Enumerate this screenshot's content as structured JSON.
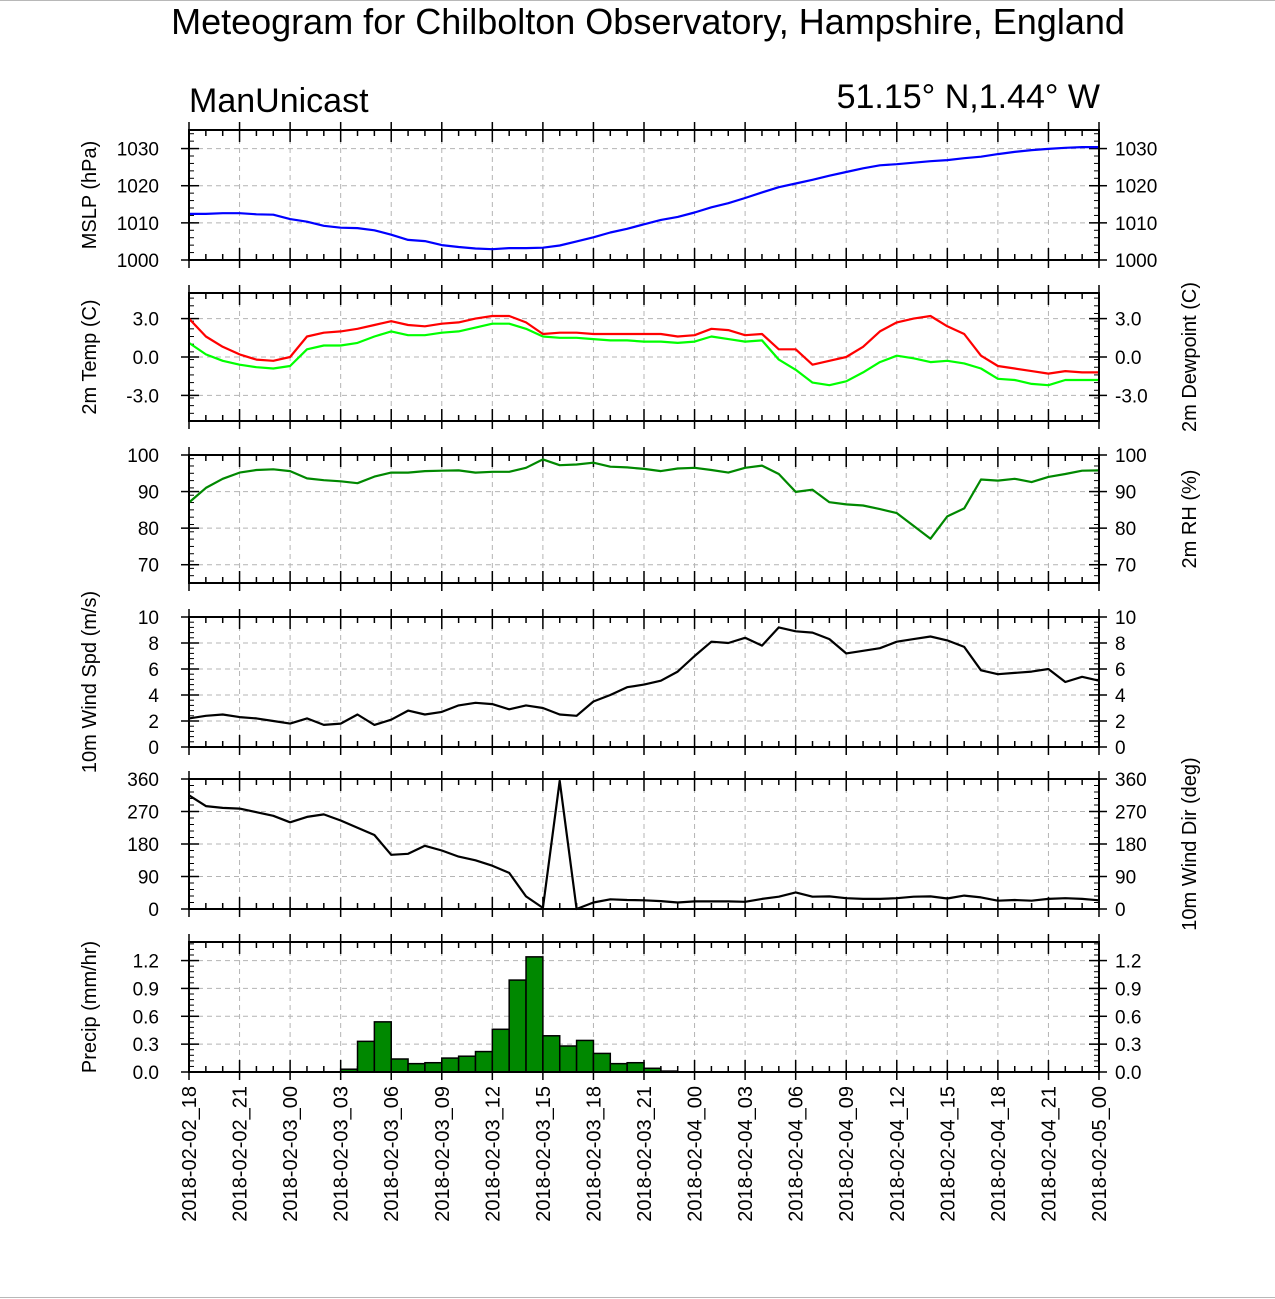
{
  "title": "Meteogram for Chilbolton Observatory, Hampshire, England",
  "model_label": "ManUnicast",
  "location_label": "51.15° N,1.44° W",
  "x_tick_labels": [
    "2018-02-02_18",
    "2018-02-02_21",
    "2018-02-03_00",
    "2018-02-03_03",
    "2018-02-03_06",
    "2018-02-03_09",
    "2018-02-03_12",
    "2018-02-03_15",
    "2018-02-03_18",
    "2018-02-03_21",
    "2018-02-04_00",
    "2018-02-04_03",
    "2018-02-04_06",
    "2018-02-04_09",
    "2018-02-04_12",
    "2018-02-04_15",
    "2018-02-04_18",
    "2018-02-04_21",
    "2018-02-05_00"
  ],
  "colors": {
    "mslp": "#0000ff",
    "temp": "#ff0000",
    "dewpoint": "#00ff00",
    "rh": "#008800",
    "wind": "#000000",
    "precip_fill": "#008800",
    "grid": "#b4b4b4"
  },
  "chart_data": [
    {
      "type": "line",
      "ylabel": "MSLP (hPa)",
      "ylabel_right": "",
      "ylim": [
        1000,
        1035
      ],
      "ticks": [
        1000,
        1010,
        1020,
        1030
      ],
      "tick_labels": [
        "1000",
        "1010",
        "1020",
        "1030"
      ],
      "grid": true,
      "series": [
        {
          "color_key": "mslp",
          "x": [
            0,
            1,
            2,
            3,
            4,
            5,
            6,
            7,
            8,
            9,
            10,
            11,
            12,
            13,
            14,
            15,
            16,
            17,
            18,
            19,
            20,
            21,
            22,
            23,
            24,
            25,
            26,
            27,
            28,
            29,
            30,
            31,
            32,
            33,
            34,
            35,
            36,
            37,
            38,
            39,
            40,
            41,
            42,
            43,
            44,
            45,
            46,
            47,
            48,
            49,
            50,
            51,
            52,
            53,
            54
          ],
          "values": [
            1012.4,
            1012.4,
            1012.6,
            1012.6,
            1012.3,
            1012.2,
            1011.0,
            1010.3,
            1009.2,
            1008.7,
            1008.6,
            1008.0,
            1006.8,
            1005.4,
            1005.1,
            1004.0,
            1003.5,
            1003.1,
            1002.9,
            1003.2,
            1003.2,
            1003.3,
            1003.9,
            1005.0,
            1006.1,
            1007.4,
            1008.4,
            1009.6,
            1010.8,
            1011.6,
            1012.8,
            1014.2,
            1015.3,
            1016.7,
            1018.2,
            1019.6,
            1020.6,
            1021.6,
            1022.7,
            1023.7,
            1024.7,
            1025.5,
            1025.8,
            1026.2,
            1026.6,
            1026.9,
            1027.4,
            1027.8,
            1028.5,
            1029.1,
            1029.6,
            1029.9,
            1030.2,
            1030.4,
            1030.4
          ]
        }
      ]
    },
    {
      "type": "line",
      "ylabel": "2m Temp (C)",
      "ylabel_right": "2m Dewpoint (C)",
      "ylim": [
        -5,
        5
      ],
      "ticks": [
        -3,
        0,
        3
      ],
      "tick_labels": [
        "-3.0",
        "0.0",
        "3.0"
      ],
      "grid": true,
      "series": [
        {
          "color_key": "temp",
          "x": [
            0,
            1,
            2,
            3,
            4,
            5,
            6,
            7,
            8,
            9,
            10,
            11,
            12,
            13,
            14,
            15,
            16,
            17,
            18,
            19,
            20,
            21,
            22,
            23,
            24,
            25,
            26,
            27,
            28,
            29,
            30,
            31,
            32,
            33,
            34,
            35,
            36,
            37,
            38,
            39,
            40,
            41,
            42,
            43,
            44,
            45,
            46,
            47,
            48,
            49,
            50,
            51,
            52,
            53,
            54
          ],
          "values": [
            3.0,
            1.6,
            0.8,
            0.2,
            -0.2,
            -0.3,
            0.0,
            1.6,
            1.9,
            2.0,
            2.2,
            2.5,
            2.8,
            2.5,
            2.4,
            2.6,
            2.7,
            3.0,
            3.2,
            3.2,
            2.7,
            1.8,
            1.9,
            1.9,
            1.8,
            1.8,
            1.8,
            1.8,
            1.8,
            1.6,
            1.7,
            2.2,
            2.1,
            1.7,
            1.8,
            0.6,
            0.6,
            -0.6,
            -0.3,
            0.0,
            0.8,
            2.0,
            2.7,
            3.0,
            3.2,
            2.4,
            1.8,
            0.1,
            -0.7,
            -0.9,
            -1.1,
            -1.3,
            -1.1,
            -1.2,
            -1.2
          ]
        },
        {
          "color_key": "dewpoint",
          "x": [
            0,
            1,
            2,
            3,
            4,
            5,
            6,
            7,
            8,
            9,
            10,
            11,
            12,
            13,
            14,
            15,
            16,
            17,
            18,
            19,
            20,
            21,
            22,
            23,
            24,
            25,
            26,
            27,
            28,
            29,
            30,
            31,
            32,
            33,
            34,
            35,
            36,
            37,
            38,
            39,
            40,
            41,
            42,
            43,
            44,
            45,
            46,
            47,
            48,
            49,
            50,
            51,
            52,
            53,
            54
          ],
          "values": [
            1.1,
            0.2,
            -0.3,
            -0.6,
            -0.8,
            -0.9,
            -0.7,
            0.6,
            0.9,
            0.9,
            1.1,
            1.6,
            2.0,
            1.7,
            1.7,
            1.9,
            2.0,
            2.3,
            2.6,
            2.6,
            2.2,
            1.6,
            1.5,
            1.5,
            1.4,
            1.3,
            1.3,
            1.2,
            1.2,
            1.1,
            1.2,
            1.6,
            1.4,
            1.2,
            1.3,
            -0.2,
            -1.0,
            -2.0,
            -2.2,
            -1.9,
            -1.2,
            -0.4,
            0.1,
            -0.1,
            -0.4,
            -0.3,
            -0.5,
            -0.9,
            -1.7,
            -1.8,
            -2.1,
            -2.2,
            -1.8,
            -1.8,
            -1.8
          ]
        }
      ]
    },
    {
      "type": "line",
      "ylabel": "",
      "ylabel_right": "2m RH (%)",
      "ylim": [
        65,
        100
      ],
      "ticks": [
        70,
        80,
        90,
        100
      ],
      "tick_labels": [
        "70",
        "80",
        "90",
        "100"
      ],
      "grid": true,
      "series": [
        {
          "color_key": "rh",
          "x": [
            0,
            1,
            2,
            3,
            4,
            5,
            6,
            7,
            8,
            9,
            10,
            11,
            12,
            13,
            14,
            15,
            16,
            17,
            18,
            19,
            20,
            21,
            22,
            23,
            24,
            25,
            26,
            27,
            28,
            29,
            30,
            31,
            32,
            33,
            34,
            35,
            36,
            37,
            38,
            39,
            40,
            41,
            42,
            43,
            44,
            45,
            46,
            47,
            48,
            49,
            50,
            51,
            52,
            53,
            54
          ],
          "values": [
            87.0,
            91.0,
            93.5,
            95.2,
            95.9,
            96.1,
            95.6,
            93.6,
            93.1,
            92.8,
            92.3,
            94.1,
            95.2,
            95.2,
            95.6,
            95.7,
            95.8,
            95.2,
            95.4,
            95.4,
            96.5,
            98.8,
            97.2,
            97.4,
            97.9,
            96.8,
            96.6,
            96.2,
            95.6,
            96.3,
            96.5,
            95.9,
            95.2,
            96.5,
            97.1,
            94.8,
            89.9,
            90.5,
            87.1,
            86.5,
            86.2,
            85.2,
            84.1,
            80.6,
            77.1,
            83.2,
            85.4,
            93.3,
            93.0,
            93.5,
            92.6,
            94.0,
            94.8,
            95.7,
            95.8
          ]
        }
      ]
    },
    {
      "type": "line",
      "ylabel": "10m Wind Spd (m/s)",
      "ylabel_right": "",
      "ylim": [
        0,
        10
      ],
      "ticks": [
        0,
        2,
        4,
        6,
        8,
        10
      ],
      "tick_labels": [
        "0",
        "2",
        "4",
        "6",
        "8",
        "10"
      ],
      "grid": true,
      "series": [
        {
          "color_key": "wind",
          "x": [
            0,
            1,
            2,
            3,
            4,
            5,
            6,
            7,
            8,
            9,
            10,
            11,
            12,
            13,
            14,
            15,
            16,
            17,
            18,
            19,
            20,
            21,
            22,
            23,
            24,
            25,
            26,
            27,
            28,
            29,
            30,
            31,
            32,
            33,
            34,
            35,
            36,
            37,
            38,
            39,
            40,
            41,
            42,
            43,
            44,
            45,
            46,
            47,
            48,
            49,
            50,
            51,
            52,
            53,
            54
          ],
          "values": [
            2.2,
            2.4,
            2.5,
            2.3,
            2.2,
            2.0,
            1.8,
            2.2,
            1.7,
            1.8,
            2.5,
            1.7,
            2.1,
            2.8,
            2.5,
            2.7,
            3.2,
            3.4,
            3.3,
            2.9,
            3.2,
            3.0,
            2.5,
            2.4,
            3.5,
            4.0,
            4.6,
            4.8,
            5.1,
            5.8,
            7.0,
            8.1,
            8.0,
            8.4,
            7.8,
            9.2,
            8.9,
            8.8,
            8.3,
            7.2,
            7.4,
            7.6,
            8.1,
            8.3,
            8.5,
            8.2,
            7.7,
            5.9,
            5.6,
            5.7,
            5.8,
            6.0,
            5.0,
            5.4,
            5.1
          ]
        }
      ]
    },
    {
      "type": "line",
      "ylabel": "",
      "ylabel_right": "10m Wind Dir (deg)",
      "ylim": [
        0,
        360
      ],
      "ticks": [
        0,
        90,
        180,
        270,
        360
      ],
      "tick_labels": [
        "0",
        "90",
        "180",
        "270",
        "360"
      ],
      "grid": true,
      "series": [
        {
          "color_key": "wind",
          "x": [
            0,
            1,
            2,
            3,
            4,
            5,
            6,
            7,
            8,
            9,
            10,
            11,
            12,
            13,
            14,
            15,
            16,
            17,
            18,
            19,
            20,
            21,
            22,
            23,
            24,
            25,
            26,
            27,
            28,
            29,
            30,
            31,
            32,
            33,
            34,
            35,
            36,
            37,
            38,
            39,
            40,
            41,
            42,
            43,
            44,
            45,
            46,
            47,
            48,
            49,
            50,
            51,
            52,
            53,
            54
          ],
          "values": [
            315,
            285,
            280,
            278,
            268,
            258,
            240,
            255,
            262,
            245,
            225,
            205,
            150,
            153,
            175,
            162,
            145,
            135,
            120,
            100,
            35,
            3,
            355,
            0,
            18,
            27,
            25,
            24,
            22,
            18,
            21,
            21,
            21,
            20,
            28,
            34,
            46,
            34,
            35,
            30,
            28,
            28,
            30,
            34,
            35,
            29,
            37,
            32,
            23,
            25,
            23,
            28,
            30,
            28,
            24
          ]
        }
      ]
    },
    {
      "type": "bar",
      "ylabel": "Precip (mm/hr)",
      "ylabel_right": "",
      "ylim": [
        0,
        1.4
      ],
      "ticks": [
        0.0,
        0.3,
        0.6,
        0.9,
        1.2
      ],
      "tick_labels": [
        "0.0",
        "0.3",
        "0.6",
        "0.9",
        "1.2"
      ],
      "grid": true,
      "series": [
        {
          "color_key": "precip_fill",
          "x": [
            0,
            1,
            2,
            3,
            4,
            5,
            6,
            7,
            8,
            9,
            10,
            11,
            12,
            13,
            14,
            15,
            16,
            17,
            18,
            19,
            20,
            21,
            22,
            23,
            24,
            25,
            26,
            27,
            28,
            29,
            30,
            31,
            32,
            33,
            34,
            35,
            36,
            37,
            38,
            39,
            40,
            41,
            42,
            43,
            44,
            45,
            46,
            47,
            48,
            49,
            50,
            51,
            52,
            53
          ],
          "values": [
            0,
            0,
            0,
            0,
            0,
            0,
            0,
            0,
            0,
            0.03,
            0.33,
            0.54,
            0.14,
            0.09,
            0.1,
            0.15,
            0.17,
            0.22,
            0.46,
            0.99,
            1.24,
            0.39,
            0.28,
            0.34,
            0.2,
            0.09,
            0.1,
            0.04,
            0.01,
            0,
            0,
            0,
            0,
            0,
            0,
            0,
            0,
            0,
            0,
            0,
            0,
            0,
            0,
            0,
            0,
            0,
            0,
            0,
            0,
            0,
            0,
            0,
            0,
            0
          ]
        }
      ]
    }
  ]
}
